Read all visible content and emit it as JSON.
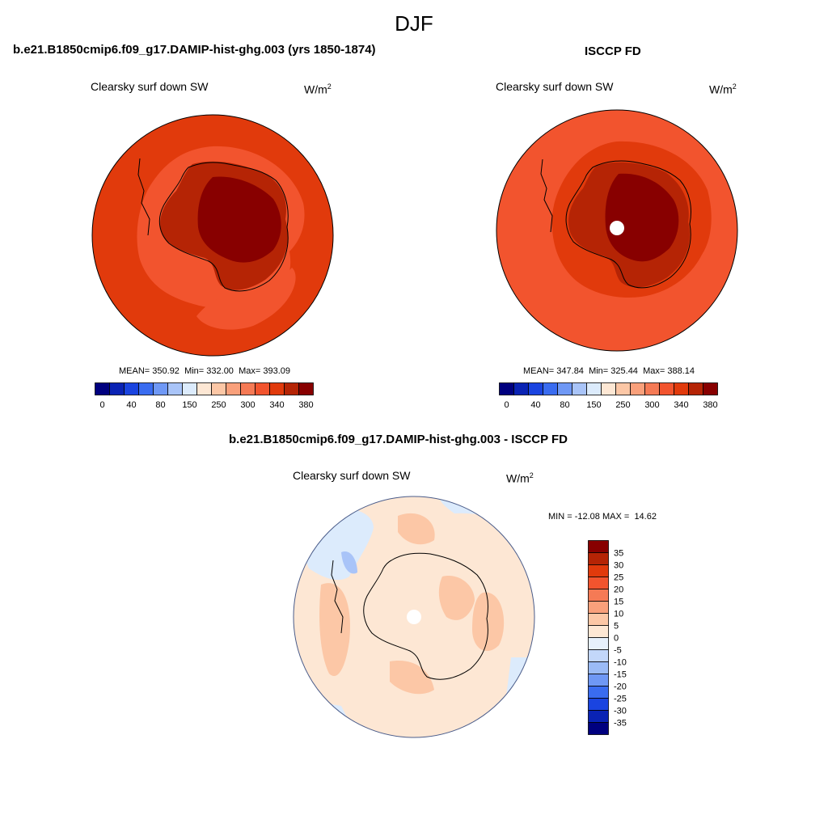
{
  "figure": {
    "season": "DJF"
  },
  "panels": [
    {
      "title": "b.e21.B1850cmip6.f09_g17.DAMIP-hist-ghg.003 (yrs 1850-1874)",
      "variable": "Clearsky surf down SW",
      "units_base": "W/m",
      "units_exp": "2",
      "stats": {
        "mean_label": "MEAN=",
        "mean": "350.92",
        "min_label": "Min=",
        "min": "332.00",
        "max_label": "Max=",
        "max": "393.09"
      },
      "colorbar_labels": [
        "0",
        "40",
        "80",
        "150",
        "250",
        "300",
        "340",
        "380"
      ]
    },
    {
      "title": "ISCCP FD",
      "variable": "Clearsky surf down SW",
      "units_base": "W/m",
      "units_exp": "2",
      "stats": {
        "mean_label": "MEAN=",
        "mean": "347.84",
        "min_label": "Min=",
        "min": "325.44",
        "max_label": "Max=",
        "max": "388.14"
      },
      "colorbar_labels": [
        "0",
        "40",
        "80",
        "150",
        "250",
        "300",
        "340",
        "380"
      ]
    },
    {
      "title": "b.e21.B1850cmip6.f09_g17.DAMIP-hist-ghg.003 - ISCCP FD",
      "variable": "Clearsky surf down SW",
      "units_base": "W/m",
      "units_exp": "2",
      "stats": {
        "min_label": "MIN =",
        "min": "-12.08",
        "max_label": "MAX =",
        "max": "14.62"
      },
      "colorbar_labels": [
        "35",
        "30",
        "25",
        "20",
        "15",
        "10",
        "5",
        "0",
        "-5",
        "-10",
        "-15",
        "-20",
        "-25",
        "-30",
        "-35"
      ]
    }
  ],
  "colors": {
    "abs_scale": [
      "#00007f",
      "#0a23b4",
      "#1a44e0",
      "#3a6cf0",
      "#6f98f5",
      "#a9c4f8",
      "#dcebfc",
      "#fde7d4",
      "#fcc7a6",
      "#f9a07b",
      "#f57a55",
      "#f2542e",
      "#e13a0c",
      "#b52405",
      "#880000"
    ],
    "diff_scale": [
      "#880000",
      "#b52405",
      "#e13a0c",
      "#f2542e",
      "#f57a55",
      "#f9a07b",
      "#fcc7a6",
      "#fde7d4",
      "#e7f0fc",
      "#c3d7fa",
      "#9bbbf6",
      "#6f98f5",
      "#3a6cf0",
      "#1a44e0",
      "#0a23b4",
      "#00007f"
    ]
  }
}
